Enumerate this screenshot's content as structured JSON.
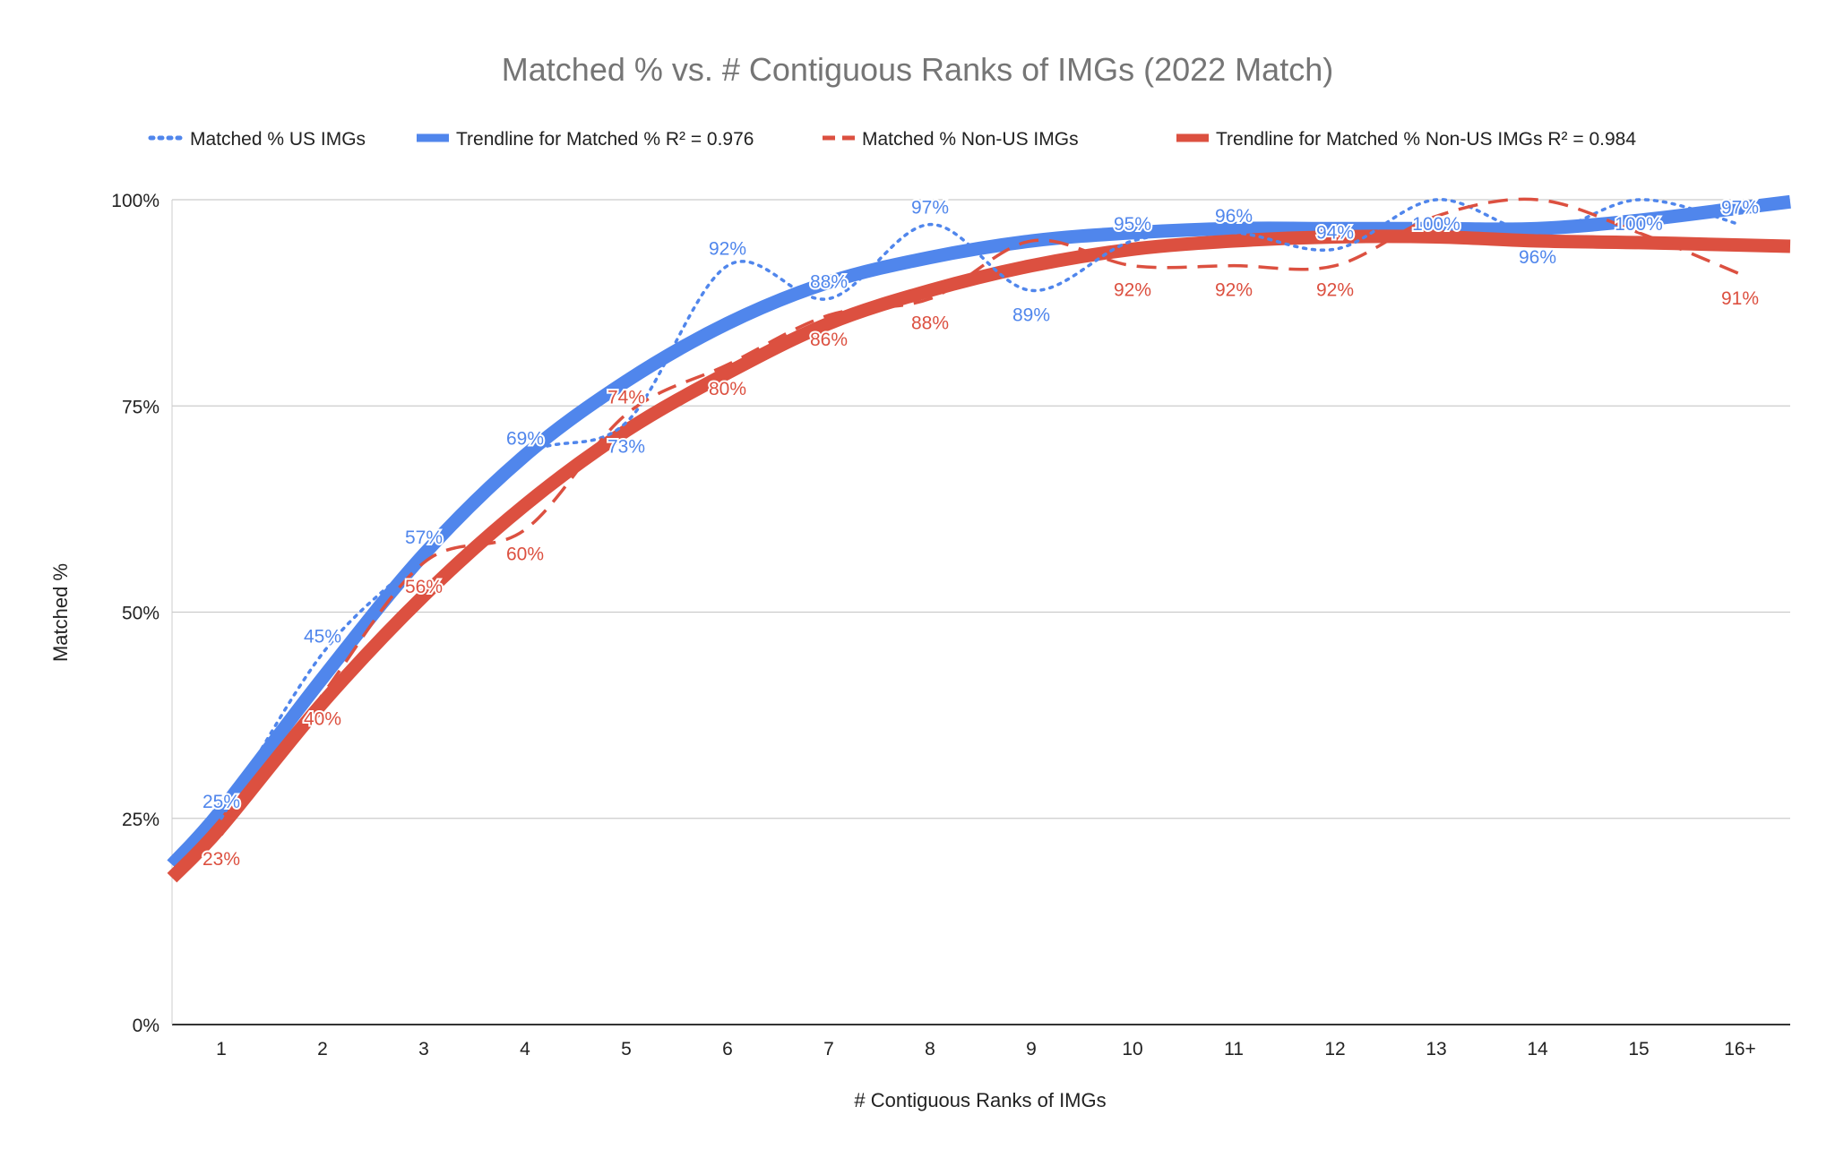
{
  "chart_data": {
    "type": "line",
    "title": "Matched % vs. # Contiguous Ranks of IMGs (2022 Match)",
    "xlabel": "# Contiguous Ranks of IMGs",
    "ylabel": "Matched %",
    "ylim": [
      0,
      100
    ],
    "yticks": [
      "0%",
      "25%",
      "50%",
      "75%",
      "100%"
    ],
    "grid": true,
    "legend_position": "top",
    "categories": [
      "1",
      "2",
      "3",
      "4",
      "5",
      "6",
      "7",
      "8",
      "9",
      "10",
      "11",
      "12",
      "13",
      "14",
      "15",
      "16+"
    ],
    "series": [
      {
        "name": "Matched % US IMGs",
        "style": "dotted",
        "color": "#5086ec",
        "values": [
          25,
          45,
          57,
          69,
          73,
          92,
          88,
          97,
          89,
          95,
          96,
          94,
          100,
          96,
          100,
          97
        ],
        "labels": [
          "25%",
          "45%",
          "57%",
          "69%",
          "73%",
          "92%",
          "88%",
          "97%",
          "89%",
          "95%",
          "96%",
          "94%",
          "100%",
          "96%",
          "100%",
          "97%"
        ]
      },
      {
        "name": "Trendline for Matched % R² = 0.976",
        "style": "trend",
        "color": "#5086ec",
        "values": [
          26,
          42,
          57,
          69,
          78,
          85,
          90,
          93,
          95,
          96,
          96.5,
          96.5,
          96.5,
          96.5,
          97.5,
          99
        ]
      },
      {
        "name": "Matched % Non-US IMGs",
        "style": "dashed",
        "color": "#dc5040",
        "values": [
          23,
          40,
          56,
          60,
          74,
          80,
          86,
          88,
          95,
          92,
          92,
          92,
          98,
          100,
          96,
          91
        ],
        "labels": [
          "23%",
          "40%",
          "56%",
          "60%",
          "74%",
          "80%",
          "86%",
          "88%",
          "",
          "92%",
          "92%",
          "92%",
          "",
          "",
          "",
          "91%"
        ]
      },
      {
        "name": "Trendline for Matched % Non-US IMGs R² = 0.984",
        "style": "trend",
        "color": "#dc5040",
        "values": [
          24,
          39,
          52,
          63,
          72,
          79,
          85,
          89,
          92,
          94,
          95,
          95.5,
          95.5,
          95,
          94.8,
          94.5
        ]
      }
    ]
  }
}
